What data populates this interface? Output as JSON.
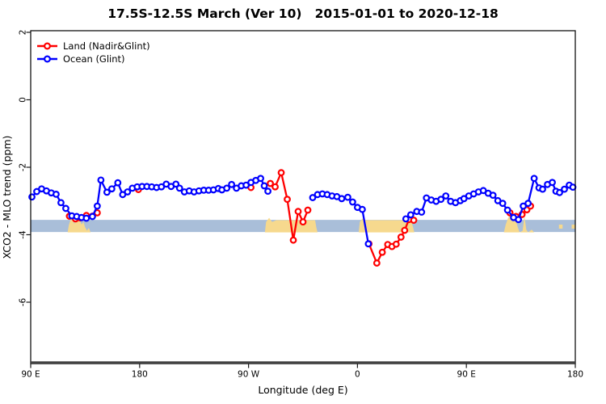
{
  "chart_data": {
    "type": "line",
    "title": "17.5S-12.5S March (Ver 10)   2015-01-01 to 2020-12-18",
    "xlabel": "Longitude (deg E)",
    "ylabel": "XCO2 - MLO trend (ppm)",
    "xlim": [
      90,
      540
    ],
    "ylim": [
      -7.8,
      2.05
    ],
    "grid": false,
    "legend_position": "top-left",
    "x_ticks": [
      {
        "pos": 90,
        "label": "90 E"
      },
      {
        "pos": 180,
        "label": "180"
      },
      {
        "pos": 270,
        "label": "90 W"
      },
      {
        "pos": 360,
        "label": "0"
      },
      {
        "pos": 450,
        "label": "90 E"
      },
      {
        "pos": 540,
        "label": "180"
      }
    ],
    "y_ticks": [
      {
        "pos": 2,
        "label": "2"
      },
      {
        "pos": 0,
        "label": "0"
      },
      {
        "pos": -2,
        "label": "-2"
      },
      {
        "pos": -4,
        "label": "-4"
      },
      {
        "pos": -6,
        "label": "-6"
      }
    ],
    "legend": [
      {
        "label": "Land (Nadir&Glint)",
        "color": "#FF0000"
      },
      {
        "label": "Ocean (Glint)",
        "color": "#0000FF"
      }
    ],
    "ocean_band": {
      "color": "#A9BED9",
      "value_top": -3.56,
      "value_bottom": -3.92
    },
    "land_shading": {
      "color": "#F6D98E",
      "base_value": -3.93,
      "profiles": [
        [
          [
            120.5,
            -3.93
          ],
          [
            121.5,
            -3.72
          ],
          [
            123,
            -3.55
          ],
          [
            124.5,
            -3.48
          ],
          [
            126,
            -3.68
          ],
          [
            127.5,
            -3.52
          ],
          [
            129,
            -3.6
          ],
          [
            130.5,
            -3.55
          ],
          [
            132,
            -3.7
          ],
          [
            133.5,
            -3.62
          ],
          [
            135,
            -3.78
          ],
          [
            136.5,
            -3.88
          ],
          [
            138,
            -3.8
          ],
          [
            139.5,
            -3.93
          ],
          [
            146,
            -3.93
          ]
        ],
        [
          [
            283.5,
            -3.93
          ],
          [
            284.5,
            -3.62
          ],
          [
            287,
            -3.5
          ],
          [
            289.5,
            -3.62
          ],
          [
            293,
            -3.57
          ],
          [
            325,
            -3.57
          ],
          [
            326,
            -3.78
          ],
          [
            327,
            -3.93
          ]
        ],
        [
          [
            361,
            -3.93
          ],
          [
            362,
            -3.62
          ],
          [
            364,
            -3.52
          ],
          [
            366,
            -3.57
          ],
          [
            404,
            -3.57
          ],
          [
            405.5,
            -3.72
          ],
          [
            407,
            -3.93
          ]
        ],
        [
          [
            481,
            -3.93
          ],
          [
            482.5,
            -3.7
          ],
          [
            484.5,
            -3.5
          ],
          [
            486.5,
            -3.42
          ],
          [
            488.5,
            -3.62
          ],
          [
            490.5,
            -3.52
          ],
          [
            492.5,
            -3.78
          ],
          [
            494,
            -3.93
          ],
          [
            496.5,
            -3.88
          ],
          [
            498,
            -3.45
          ],
          [
            499.5,
            -3.85
          ],
          [
            501,
            -3.93
          ],
          [
            504,
            -3.85
          ],
          [
            506,
            -3.93
          ],
          [
            508,
            -3.93
          ]
        ]
      ],
      "strips": [
        {
          "from_lon": 526.5,
          "to_lon": 529.5,
          "value_top": -3.7,
          "value_bottom": -3.82
        },
        {
          "from_lon": 537.0,
          "to_lon": 540.0,
          "value_top": -3.7,
          "value_bottom": -3.82
        }
      ]
    },
    "series": [
      {
        "name": "Land (Nadir&Glint)",
        "color": "#FF0000",
        "segments": [
          [
            [
              122,
              -3.45
            ],
            [
              127,
              -3.53
            ],
            [
              131,
              -3.5
            ],
            [
              136,
              -3.43
            ],
            [
              141,
              -3.45
            ],
            [
              145,
              -3.35
            ]
          ],
          [
            [
              179,
              -2.66
            ]
          ],
          [
            [
              272,
              -2.6
            ]
          ],
          [
            [
              288,
              -2.48
            ],
            [
              292,
              -2.58
            ],
            [
              297,
              -2.16
            ],
            [
              302,
              -2.95
            ],
            [
              307,
              -4.16
            ],
            [
              311,
              -3.31
            ],
            [
              315,
              -3.62
            ],
            [
              319,
              -3.27
            ]
          ],
          [
            [
              369.5,
              -4.27
            ],
            [
              376,
              -4.84
            ],
            [
              380.5,
              -4.52
            ],
            [
              385,
              -4.29
            ],
            [
              388.5,
              -4.35
            ],
            [
              392,
              -4.28
            ],
            [
              396,
              -4.07
            ],
            [
              399,
              -3.87
            ],
            [
              402.5,
              -3.55
            ],
            [
              406.5,
              -3.57
            ]
          ],
          [
            [
              486,
              -3.35
            ],
            [
              491,
              -3.46
            ],
            [
              496,
              -3.4
            ],
            [
              500,
              -3.26
            ],
            [
              503,
              -3.15
            ]
          ]
        ]
      },
      {
        "name": "Ocean (Glint)",
        "color": "#0000FF",
        "segments": [
          [
            [
              91,
              -2.88
            ],
            [
              95,
              -2.72
            ],
            [
              99,
              -2.64
            ],
            [
              103,
              -2.7
            ],
            [
              107,
              -2.76
            ],
            [
              111,
              -2.8
            ],
            [
              115,
              -3.05
            ],
            [
              119,
              -3.22
            ],
            [
              124,
              -3.44
            ],
            [
              128,
              -3.46
            ],
            [
              132,
              -3.49
            ],
            [
              136,
              -3.51
            ],
            [
              141,
              -3.46
            ],
            [
              145,
              -3.15
            ],
            [
              148,
              -2.38
            ],
            [
              153,
              -2.74
            ],
            [
              157,
              -2.64
            ],
            [
              162,
              -2.46
            ],
            [
              166,
              -2.81
            ],
            [
              170,
              -2.73
            ],
            [
              174,
              -2.62
            ],
            [
              178,
              -2.58
            ],
            [
              182,
              -2.57
            ],
            [
              186,
              -2.57
            ],
            [
              190,
              -2.58
            ],
            [
              194,
              -2.6
            ],
            [
              198,
              -2.58
            ],
            [
              202,
              -2.5
            ],
            [
              206,
              -2.57
            ],
            [
              210,
              -2.5
            ],
            [
              213,
              -2.62
            ],
            [
              217,
              -2.73
            ],
            [
              221,
              -2.7
            ],
            [
              225,
              -2.73
            ],
            [
              229,
              -2.7
            ],
            [
              233,
              -2.68
            ],
            [
              237,
              -2.68
            ],
            [
              241,
              -2.67
            ],
            [
              245,
              -2.63
            ],
            [
              248,
              -2.67
            ],
            [
              252,
              -2.62
            ],
            [
              256,
              -2.51
            ],
            [
              260,
              -2.62
            ],
            [
              264,
              -2.55
            ],
            [
              268,
              -2.53
            ],
            [
              272,
              -2.45
            ],
            [
              276,
              -2.39
            ],
            [
              280,
              -2.33
            ],
            [
              283,
              -2.55
            ],
            [
              286,
              -2.71
            ]
          ],
          [
            [
              323,
              -2.9
            ],
            [
              327,
              -2.81
            ],
            [
              331,
              -2.79
            ],
            [
              335,
              -2.81
            ],
            [
              339,
              -2.85
            ],
            [
              343,
              -2.87
            ],
            [
              347,
              -2.93
            ],
            [
              352,
              -2.89
            ],
            [
              356,
              -3.03
            ],
            [
              360,
              -3.19
            ],
            [
              364,
              -3.25
            ],
            [
              369,
              -4.27
            ]
          ],
          [
            [
              400,
              -3.53
            ],
            [
              404,
              -3.41
            ],
            [
              409,
              -3.31
            ],
            [
              413,
              -3.33
            ],
            [
              417,
              -2.91
            ],
            [
              421,
              -2.97
            ],
            [
              425,
              -3.01
            ],
            [
              429,
              -2.95
            ],
            [
              433,
              -2.85
            ],
            [
              437,
              -3.01
            ],
            [
              441,
              -3.05
            ],
            [
              445,
              -2.99
            ],
            [
              448,
              -2.93
            ],
            [
              452,
              -2.85
            ],
            [
              456,
              -2.79
            ],
            [
              460,
              -2.73
            ],
            [
              464,
              -2.69
            ],
            [
              468,
              -2.77
            ],
            [
              472,
              -2.83
            ],
            [
              476,
              -2.99
            ],
            [
              480,
              -3.07
            ],
            [
              484,
              -3.27
            ],
            [
              489,
              -3.49
            ],
            [
              493,
              -3.55
            ],
            [
              497,
              -3.15
            ],
            [
              501,
              -3.07
            ],
            [
              506,
              -2.33
            ],
            [
              510,
              -2.61
            ],
            [
              513,
              -2.65
            ],
            [
              517,
              -2.51
            ],
            [
              521,
              -2.45
            ],
            [
              524,
              -2.71
            ],
            [
              527,
              -2.75
            ],
            [
              531,
              -2.65
            ],
            [
              535,
              -2.53
            ],
            [
              538,
              -2.59
            ]
          ]
        ]
      }
    ],
    "axis_colors": {
      "box": "#000000",
      "x_axis_line": "#3F3F3F",
      "tick": "#1A1A1A"
    }
  }
}
